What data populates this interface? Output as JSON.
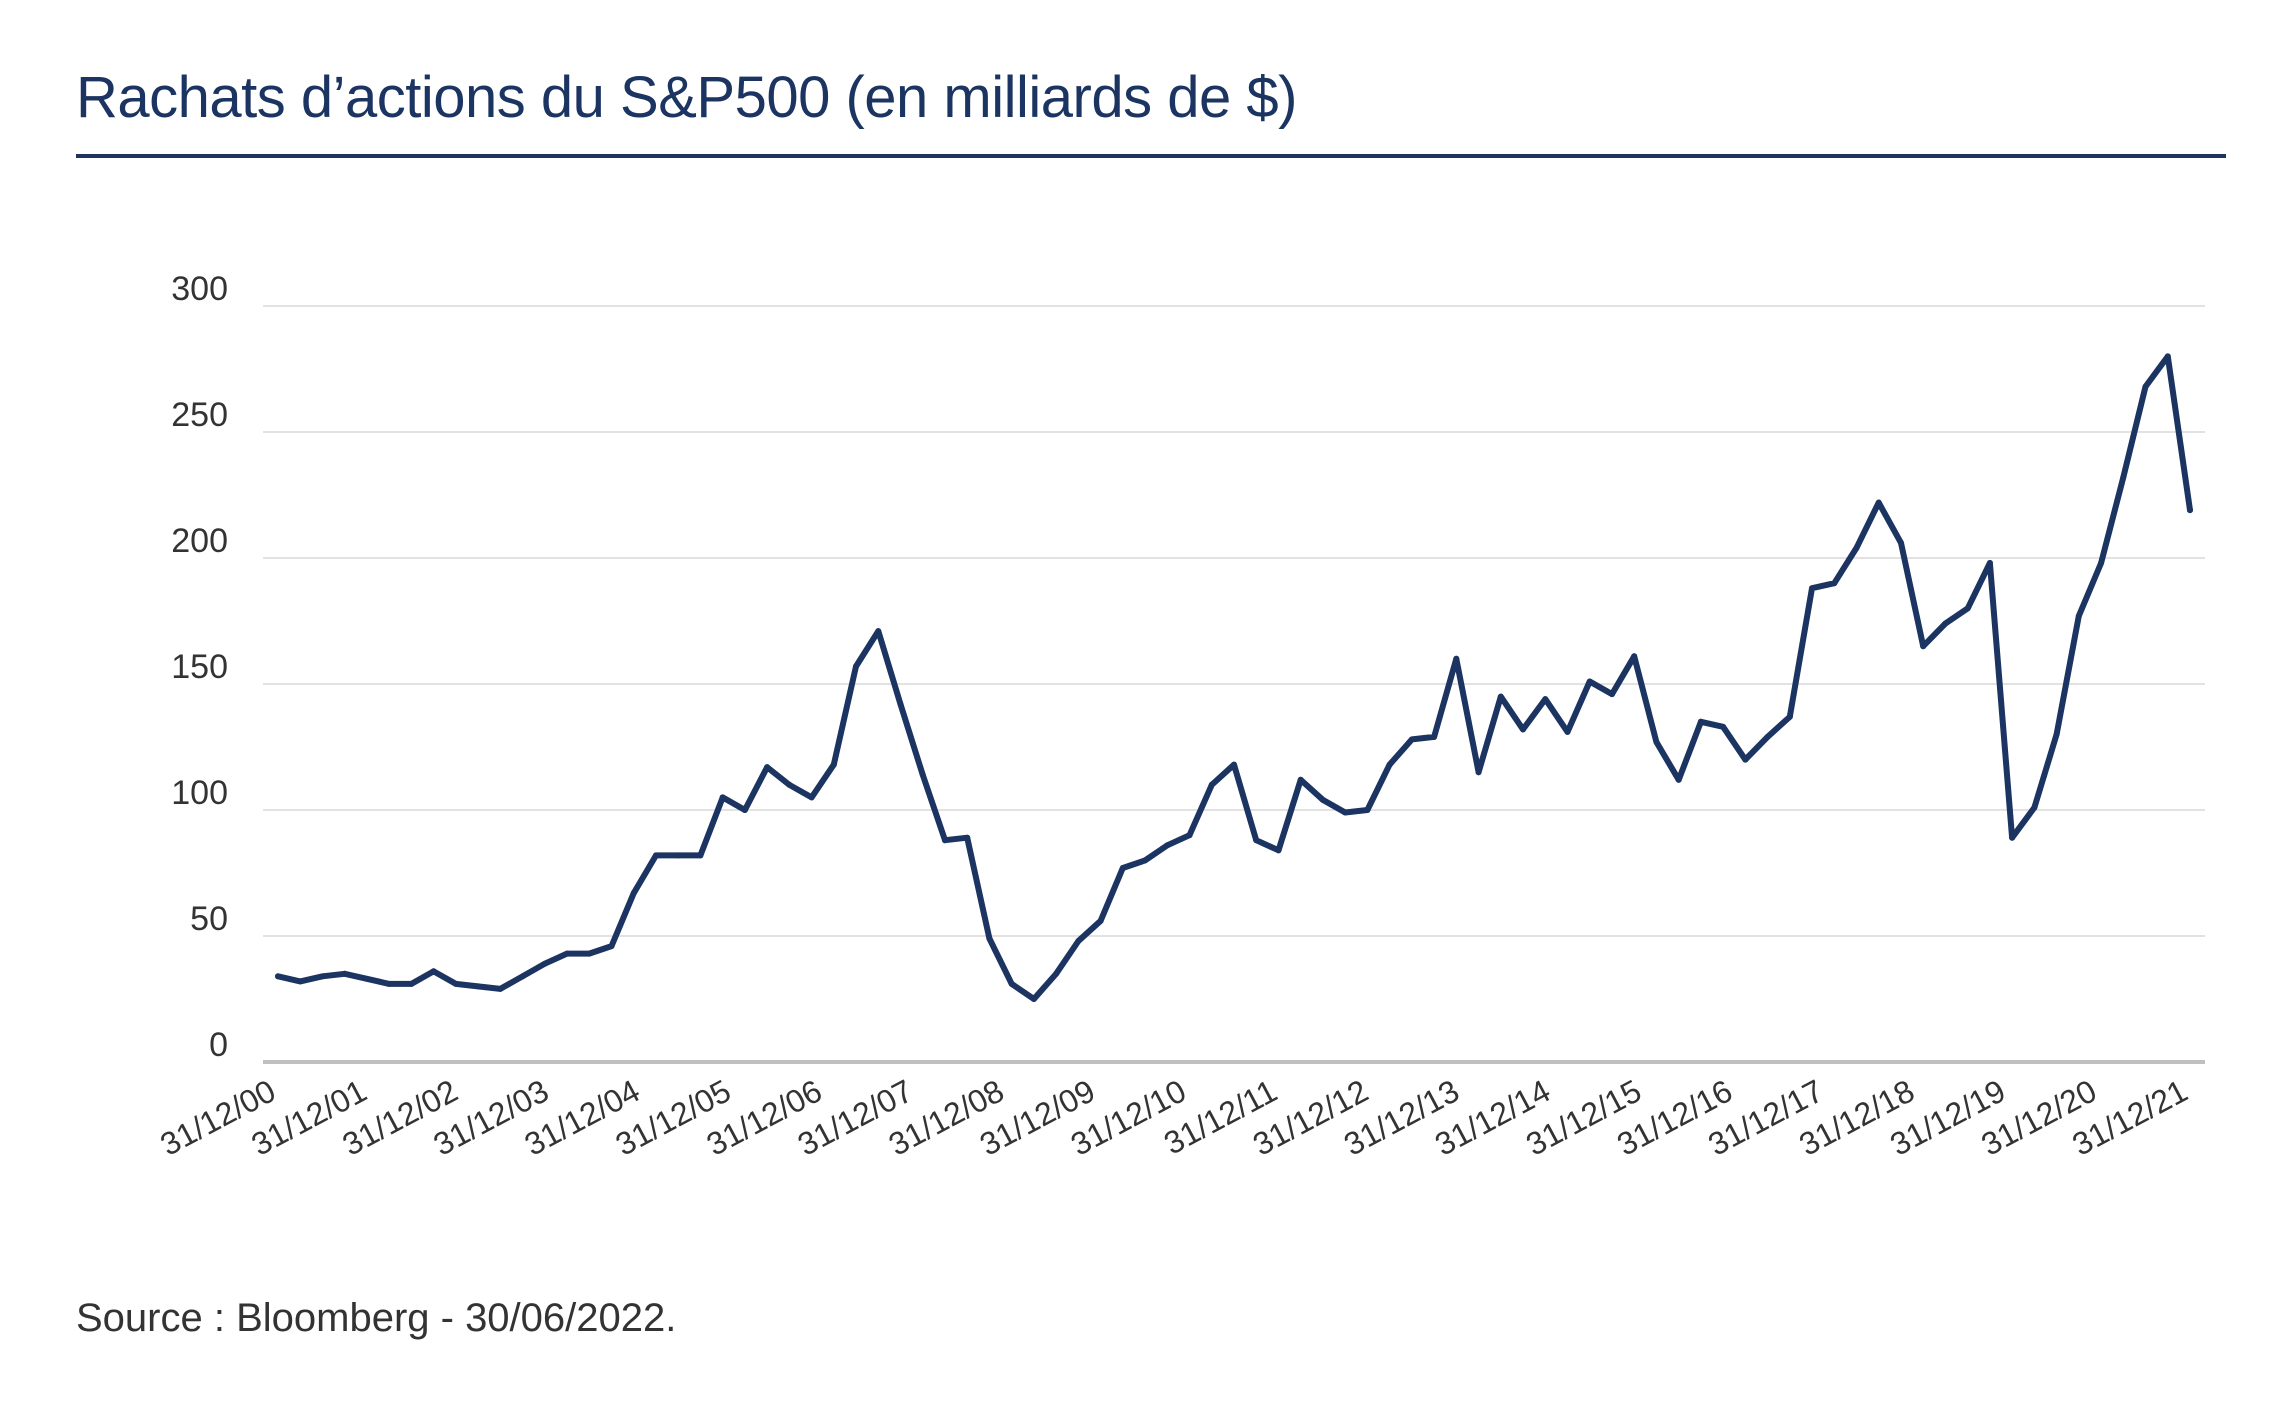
{
  "title": "Rachats d’actions du S&P500 (en milliards de $)",
  "source": "Source : Bloomberg - 30/06/2022.",
  "colors": {
    "title": "#1c3461",
    "line": "#1c3461",
    "grid": "#d9d9d9",
    "axis": "#bfbfbf",
    "text": "#333333"
  },
  "chart_data": {
    "type": "line",
    "title": "Rachats d’actions du S&P500 (en milliards de $)",
    "xlabel": "",
    "ylabel": "",
    "ylim": [
      0,
      300
    ],
    "yticks": [
      "0",
      "50",
      "100",
      "150",
      "200",
      "250",
      "300"
    ],
    "x_tick_labels": [
      "31/12/00",
      "31/12/01",
      "31/12/02",
      "31/12/03",
      "31/12/04",
      "31/12/05",
      "31/12/06",
      "31/12/07",
      "31/12/08",
      "31/12/09",
      "31/12/10",
      "31/12/11",
      "31/12/12",
      "31/12/13",
      "31/12/14",
      "31/12/15",
      "31/12/16",
      "31/12/17",
      "31/12/18",
      "31/12/19",
      "31/12/20",
      "31/12/21"
    ],
    "grid": true,
    "legend": "none",
    "series": [
      {
        "values": [
          34,
          32,
          34,
          35,
          33,
          31,
          31,
          36,
          31,
          30,
          29,
          34,
          39,
          43,
          43,
          46,
          67,
          82,
          82,
          82,
          105,
          100,
          117,
          110,
          105,
          118,
          157,
          171,
          142,
          114,
          88,
          89,
          49,
          31,
          25,
          35,
          48,
          56,
          77,
          80,
          86,
          90,
          110,
          118,
          88,
          84,
          112,
          104,
          99,
          100,
          118,
          128,
          129,
          160,
          115,
          145,
          132,
          144,
          131,
          151,
          146,
          161,
          127,
          112,
          135,
          133,
          120,
          129,
          137,
          188,
          190,
          204,
          222,
          206,
          165,
          174,
          180,
          198,
          89,
          101,
          130,
          177,
          198,
          232,
          268,
          280,
          219
        ]
      }
    ]
  }
}
